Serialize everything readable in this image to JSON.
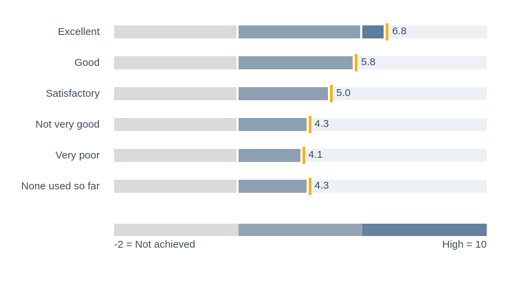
{
  "chart_data": {
    "type": "bullet",
    "categories": [
      "Excellent",
      "Good",
      "Satisfactory",
      "Not very good",
      "Very poor",
      "None used so far"
    ],
    "values": [
      6.8,
      5.8,
      5.0,
      4.3,
      4.1,
      4.3
    ],
    "value_labels": [
      "6.8",
      "5.8",
      "5.0",
      "4.3",
      "4.1",
      "4.3"
    ],
    "xlim": [
      -2,
      10
    ],
    "range_breaks": [
      -2,
      2,
      6,
      10
    ],
    "range_colors": [
      "#d8dadb",
      "#8da0b2",
      "#5d7c9e"
    ],
    "remainder_color": "#edf1f5",
    "marker_color": "#f8b213",
    "legend": {
      "range_colors": [
        "#d8dadb",
        "#94a4b3",
        "#66819f"
      ],
      "left_label": "-2 = Not achieved",
      "right_label": "High = 10"
    }
  },
  "colors": {
    "text": "#3e4c5b",
    "background": "#ffffff"
  }
}
